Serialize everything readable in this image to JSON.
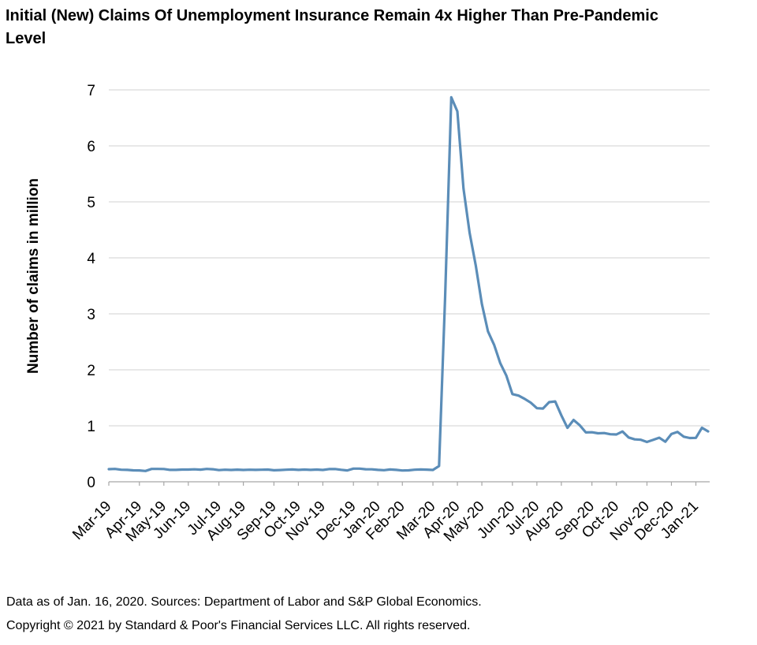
{
  "header": {
    "title_line1": "Initial (New) Claims Of Unemployment Insurance Remain 4x Higher Than Pre-Pandemic",
    "title_line2": "Level"
  },
  "footer": {
    "source_note": "Data as of Jan. 16, 2020. Sources: Department of Labor and S&P Global Economics.",
    "copyright_note": "Copyright © 2021 by Standard & Poor's Financial Services LLC. All rights reserved."
  },
  "colors": {
    "line": "#5b8db8",
    "grid": "#d9d9d9",
    "axis": "#a6a6a6",
    "text": "#000000",
    "background": "#ffffff"
  },
  "chart_data": {
    "type": "line",
    "title": "Initial (New) Claims Of Unemployment Insurance Remain 4x Higher Than Pre-Pandemic Level",
    "xlabel": "",
    "ylabel": "Number of claims in million",
    "ylim": [
      0,
      7
    ],
    "y_ticks": [
      0,
      1,
      2,
      3,
      4,
      5,
      6,
      7
    ],
    "grid": "horizontal",
    "legend": "none",
    "frequency": "weekly",
    "x_tick_labels": [
      "Mar-19",
      "Apr-19",
      "May-19",
      "Jun-19",
      "Jul-19",
      "Aug-19",
      "Sep-19",
      "Oct-19",
      "Nov-19",
      "Dec-19",
      "Jan-20",
      "Feb-20",
      "Mar-20",
      "Apr-20",
      "May-20",
      "Jun-20",
      "Jul-20",
      "Aug-20",
      "Sep-20",
      "Oct-20",
      "Nov-20",
      "Dec-20",
      "Jan-21"
    ],
    "x_tick_indices": [
      0,
      5,
      9,
      13,
      18,
      22,
      27,
      31,
      35,
      40,
      44,
      48,
      53,
      57,
      61,
      66,
      70,
      74,
      79,
      83,
      88,
      92,
      96
    ],
    "series": [
      {
        "name": "Initial unemployment insurance claims",
        "unit": "millions",
        "values": [
          0.226,
          0.23,
          0.216,
          0.212,
          0.204,
          0.203,
          0.193,
          0.23,
          0.23,
          0.228,
          0.212,
          0.212,
          0.218,
          0.219,
          0.222,
          0.217,
          0.229,
          0.224,
          0.209,
          0.216,
          0.211,
          0.217,
          0.211,
          0.216,
          0.213,
          0.216,
          0.219,
          0.206,
          0.21,
          0.215,
          0.22,
          0.212,
          0.218,
          0.213,
          0.218,
          0.211,
          0.227,
          0.228,
          0.214,
          0.203,
          0.235,
          0.235,
          0.224,
          0.222,
          0.212,
          0.207,
          0.22,
          0.212,
          0.201,
          0.204,
          0.215,
          0.22,
          0.217,
          0.211,
          0.282,
          3.307,
          6.867,
          6.615,
          5.237,
          4.442,
          3.867,
          3.176,
          2.687,
          2.446,
          2.123,
          1.897,
          1.566,
          1.54,
          1.482,
          1.413,
          1.314,
          1.308,
          1.422,
          1.435,
          1.186,
          0.963,
          1.104,
          1.011,
          0.881,
          0.884,
          0.866,
          0.87,
          0.849,
          0.845,
          0.898,
          0.791,
          0.758,
          0.751,
          0.711,
          0.748,
          0.787,
          0.716,
          0.853,
          0.892,
          0.806,
          0.782,
          0.784,
          0.965,
          0.9
        ]
      }
    ]
  }
}
